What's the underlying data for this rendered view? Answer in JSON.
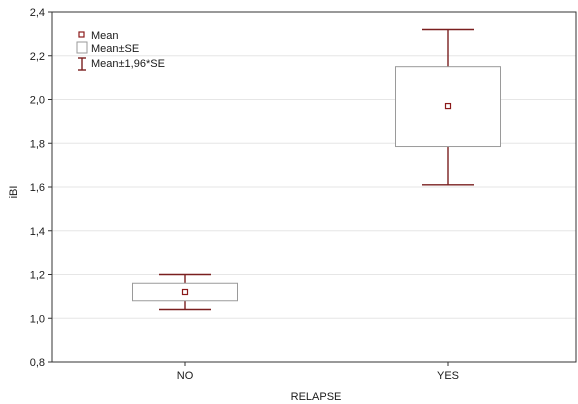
{
  "chart_data": {
    "type": "box",
    "xlabel": "RELAPSE",
    "ylabel": "iBI",
    "categories": [
      "NO",
      "YES"
    ],
    "ylim": [
      0.8,
      2.4
    ],
    "yticks": [
      "0,8",
      "1,0",
      "1,2",
      "1,4",
      "1,6",
      "1,8",
      "2,0",
      "2,2",
      "2,4"
    ],
    "ytick_values": [
      0.8,
      1.0,
      1.2,
      1.4,
      1.6,
      1.8,
      2.0,
      2.2,
      2.4
    ],
    "grid": true,
    "legend": {
      "placement": "top-left",
      "entries": [
        "Mean",
        "Mean±SE",
        "Mean±1,96*SE"
      ]
    },
    "series": [
      {
        "category": "NO",
        "mean": 1.12,
        "se_low": 1.08,
        "se_high": 1.16,
        "ci_low": 1.04,
        "ci_high": 1.2
      },
      {
        "category": "YES",
        "mean": 1.97,
        "se_low": 1.785,
        "se_high": 2.15,
        "ci_low": 1.61,
        "ci_high": 2.32
      }
    ],
    "colors": {
      "mean_marker": "#8b1a1a",
      "whisker": "#7a1f1f",
      "box": "#9a9a9a",
      "grid": "#e6e6e6",
      "axis": "#333333"
    }
  }
}
